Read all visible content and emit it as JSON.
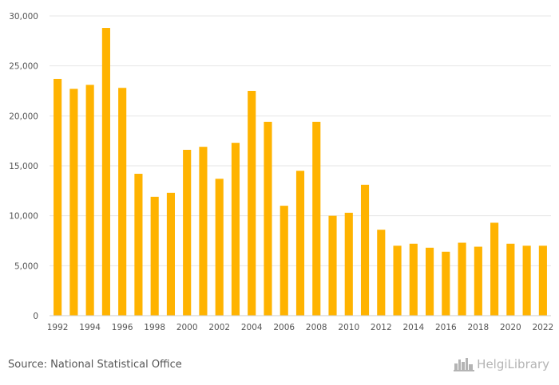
{
  "chart_data": {
    "type": "bar",
    "x": [
      1992,
      1993,
      1994,
      1995,
      1996,
      1997,
      1998,
      1999,
      2000,
      2001,
      2002,
      2003,
      2004,
      2005,
      2006,
      2007,
      2008,
      2009,
      2010,
      2011,
      2012,
      2013,
      2014,
      2015,
      2016,
      2017,
      2018,
      2019,
      2020,
      2021,
      2022
    ],
    "values": [
      23700,
      22700,
      23100,
      28800,
      22800,
      14200,
      11900,
      12300,
      16600,
      16900,
      13700,
      17300,
      22500,
      19400,
      11000,
      14500,
      19400,
      10000,
      10300,
      13100,
      8600,
      7000,
      7200,
      6800,
      6400,
      7300,
      6900,
      9300,
      7200,
      7000,
      7000
    ],
    "xticks": [
      "1992",
      "1994",
      "1996",
      "1998",
      "2000",
      "2002",
      "2004",
      "2006",
      "2008",
      "2010",
      "2012",
      "2014",
      "2016",
      "2018",
      "2020",
      "2022"
    ],
    "yticks": [
      "0",
      "5,000",
      "10,000",
      "15,000",
      "20,000",
      "25,000",
      "30,000"
    ],
    "ylim": [
      0,
      30000
    ],
    "grid": true,
    "bar_color": "#ffb300"
  },
  "footer": {
    "source": "Source: National Statistical Office",
    "logo_text": "HelgiLibrary",
    "logo_icon": "skyline-icon"
  }
}
